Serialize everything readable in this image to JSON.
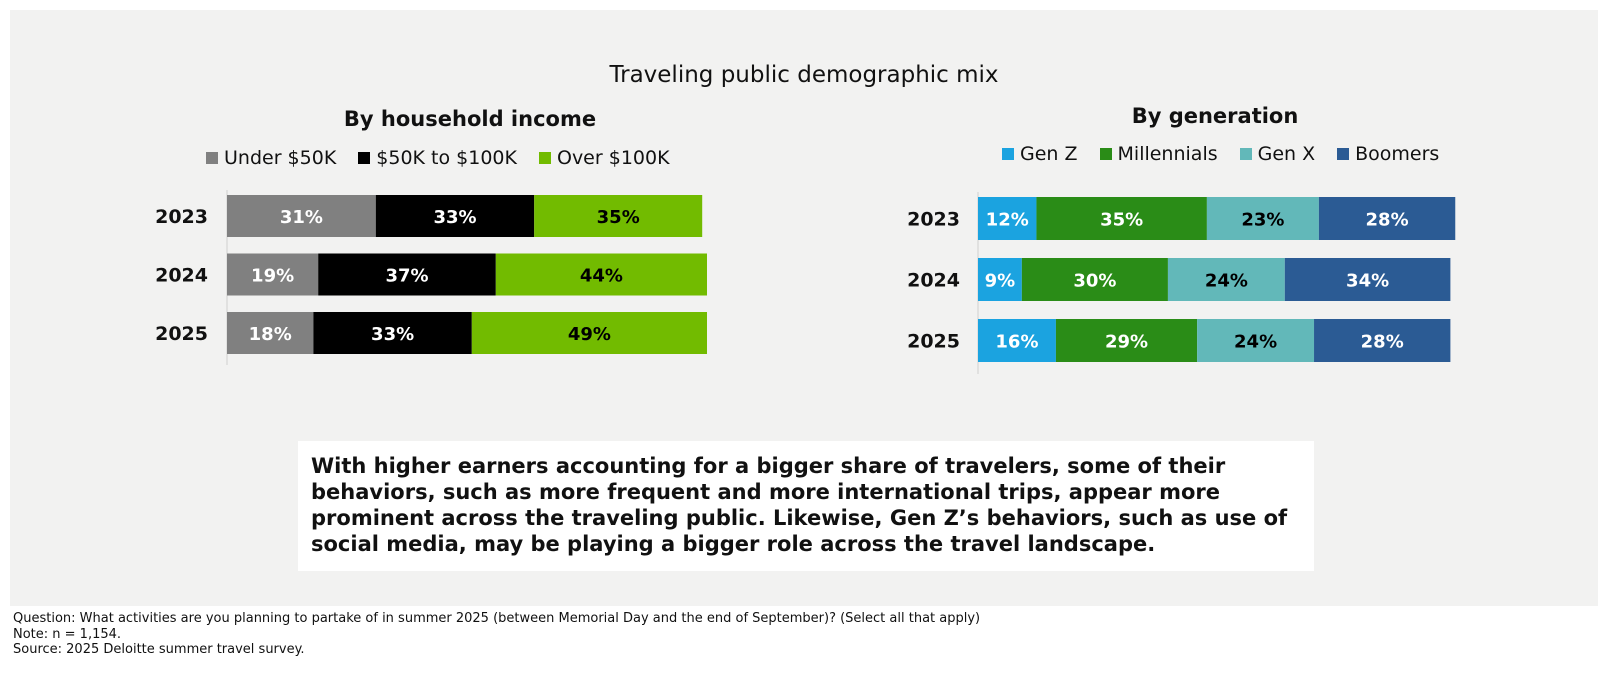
{
  "colors": {
    "under_50k": "#808080",
    "50k_100k": "#000000",
    "over_100k": "#72bb00",
    "gen_z": "#1ba3e0",
    "millennials": "#2a8c17",
    "gen_x": "#62b8b9",
    "boomers": "#2b5b94"
  },
  "chart_data": [
    {
      "type": "bar",
      "orientation": "horizontal",
      "stacked": true,
      "title": "Traveling public demographic mix",
      "subtitle": "By household income",
      "categories": [
        "2023",
        "2024",
        "2025"
      ],
      "series": [
        {
          "name": "Under $50K",
          "values": [
            31,
            19,
            18
          ],
          "color": "#808080",
          "label_color": "#ffffff"
        },
        {
          "name": "$50K to $100K",
          "values": [
            33,
            37,
            33
          ],
          "color": "#000000",
          "label_color": "#ffffff"
        },
        {
          "name": "Over $100K",
          "values": [
            35,
            44,
            49
          ],
          "color": "#72bb00",
          "label_color": "#000000"
        }
      ],
      "value_suffix": "%",
      "legend_position": "top",
      "grid": false
    },
    {
      "type": "bar",
      "orientation": "horizontal",
      "stacked": true,
      "subtitle": "By generation",
      "categories": [
        "2023",
        "2024",
        "2025"
      ],
      "series": [
        {
          "name": "Gen Z",
          "values": [
            12,
            9,
            16
          ],
          "color": "#1ba3e0",
          "label_color": "#ffffff"
        },
        {
          "name": "Millennials",
          "values": [
            35,
            30,
            29
          ],
          "color": "#2a8c17",
          "label_color": "#ffffff"
        },
        {
          "name": "Gen X",
          "values": [
            23,
            24,
            24
          ],
          "color": "#62b8b9",
          "label_color": "#000000"
        },
        {
          "name": "Boomers",
          "values": [
            28,
            34,
            28
          ],
          "color": "#2b5b94",
          "label_color": "#ffffff"
        }
      ],
      "value_suffix": "%",
      "legend_position": "top",
      "grid": false
    }
  ],
  "header": {
    "title": "Traveling public demographic mix",
    "income_title": "By household income",
    "generation_title": "By generation"
  },
  "callout": {
    "text": "With higher earners accounting for a bigger share of travelers, some of their behaviors, such as more frequent and more international trips, appear more prominent across the traveling public. Likewise, Gen Z’s behaviors, such as use of social media, may be playing a bigger role across the travel landscape."
  },
  "footnotes": {
    "question": "Question: What activities are you planning to partake of in summer 2025 (between Memorial Day and the end of September)? (Select all that apply)",
    "note": "Note: n = 1,154.",
    "source": "Source: 2025 Deloitte summer travel survey."
  }
}
